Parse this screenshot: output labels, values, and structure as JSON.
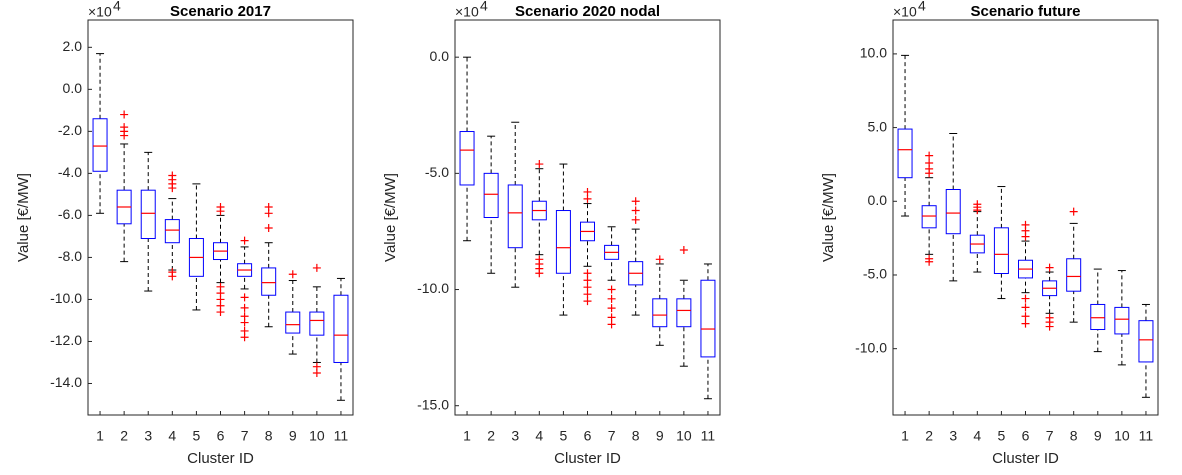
{
  "chart_data": [
    {
      "type": "box",
      "title": "Scenario 2017",
      "x_label": "Cluster ID",
      "y_label": "Value [€/MW]",
      "scale_label": "×10",
      "scale_exponent": "4",
      "categories": [
        "1",
        "2",
        "3",
        "4",
        "5",
        "6",
        "7",
        "8",
        "9",
        "10",
        "11"
      ],
      "ylim": [
        -15.5,
        3.3
      ],
      "yticks": [
        {
          "value": 2,
          "label": "2.0"
        },
        {
          "value": 0,
          "label": "0.0"
        },
        {
          "value": -2,
          "label": "-2.0"
        },
        {
          "value": -4,
          "label": "-4.0"
        },
        {
          "value": -6,
          "label": "-6.0"
        },
        {
          "value": -8,
          "label": "-8.0"
        },
        {
          "value": -10,
          "label": "-10.0"
        },
        {
          "value": -12,
          "label": "-12.0"
        },
        {
          "value": -14,
          "label": "-14.0"
        }
      ],
      "box_color": "#0000ff",
      "median_color": "#ff0000",
      "outlier_color": "#ff0000",
      "whisker_color": "#000000",
      "boxes": [
        {
          "whisker_low": -5.9,
          "q1": -3.9,
          "median": -2.7,
          "q3": -1.4,
          "whisker_high": 1.7,
          "outliers": []
        },
        {
          "whisker_low": -8.2,
          "q1": -6.4,
          "median": -5.6,
          "q3": -4.8,
          "whisker_high": -2.6,
          "outliers": [
            -1.2,
            -1.8,
            -2.0,
            -2.2
          ]
        },
        {
          "whisker_low": -9.6,
          "q1": -7.1,
          "median": -5.9,
          "q3": -4.8,
          "whisker_high": -3.0,
          "outliers": []
        },
        {
          "whisker_low": -8.6,
          "q1": -7.3,
          "median": -6.7,
          "q3": -6.2,
          "whisker_high": -5.2,
          "outliers": [
            -4.1,
            -4.3,
            -4.5,
            -4.7,
            -8.7,
            -8.9
          ]
        },
        {
          "whisker_low": -10.5,
          "q1": -8.9,
          "median": -8.0,
          "q3": -7.1,
          "whisker_high": -4.5,
          "outliers": []
        },
        {
          "whisker_low": -9.2,
          "q1": -8.1,
          "median": -7.7,
          "q3": -7.3,
          "whisker_high": -6.0,
          "outliers": [
            -5.6,
            -5.8,
            -9.4,
            -9.7,
            -10.0,
            -10.3,
            -10.6
          ]
        },
        {
          "whisker_low": -9.5,
          "q1": -8.9,
          "median": -8.6,
          "q3": -8.3,
          "whisker_high": -7.5,
          "outliers": [
            -7.2,
            -9.9,
            -10.4,
            -10.8,
            -11.1,
            -11.5,
            -11.8
          ]
        },
        {
          "whisker_low": -11.3,
          "q1": -9.8,
          "median": -9.2,
          "q3": -8.5,
          "whisker_high": -7.3,
          "outliers": [
            -5.6,
            -5.9,
            -6.6
          ]
        },
        {
          "whisker_low": -12.6,
          "q1": -11.6,
          "median": -11.2,
          "q3": -10.6,
          "whisker_high": -9.1,
          "outliers": [
            -8.8
          ]
        },
        {
          "whisker_low": -13.0,
          "q1": -11.7,
          "median": -11.0,
          "q3": -10.6,
          "whisker_high": -9.4,
          "outliers": [
            -8.5,
            -13.2,
            -13.5
          ]
        },
        {
          "whisker_low": -14.8,
          "q1": -13.0,
          "median": -11.7,
          "q3": -9.8,
          "whisker_high": -9.0,
          "outliers": []
        }
      ]
    },
    {
      "type": "box",
      "title": "Scenario 2020 nodal",
      "x_label": "Cluster ID",
      "y_label": "Value [€/MW]",
      "scale_label": "×10",
      "scale_exponent": "4",
      "categories": [
        "1",
        "2",
        "3",
        "4",
        "5",
        "6",
        "7",
        "8",
        "9",
        "10",
        "11"
      ],
      "ylim": [
        -15.4,
        1.6
      ],
      "yticks": [
        {
          "value": 0,
          "label": "0.0"
        },
        {
          "value": -5,
          "label": "-5.0"
        },
        {
          "value": -10,
          "label": "-10.0"
        },
        {
          "value": -15,
          "label": "-15.0"
        }
      ],
      "box_color": "#0000ff",
      "median_color": "#ff0000",
      "outlier_color": "#ff0000",
      "whisker_color": "#000000",
      "boxes": [
        {
          "whisker_low": -7.9,
          "q1": -5.5,
          "median": -4.0,
          "q3": -3.2,
          "whisker_high": 0.0,
          "outliers": []
        },
        {
          "whisker_low": -9.3,
          "q1": -6.9,
          "median": -5.9,
          "q3": -5.0,
          "whisker_high": -3.4,
          "outliers": []
        },
        {
          "whisker_low": -9.9,
          "q1": -8.2,
          "median": -6.7,
          "q3": -5.5,
          "whisker_high": -2.8,
          "outliers": []
        },
        {
          "whisker_low": -8.5,
          "q1": -7.0,
          "median": -6.6,
          "q3": -6.2,
          "whisker_high": -4.8,
          "outliers": [
            -4.6,
            -8.7,
            -8.9,
            -9.1,
            -9.3
          ]
        },
        {
          "whisker_low": -11.1,
          "q1": -9.3,
          "median": -8.2,
          "q3": -6.6,
          "whisker_high": -4.6,
          "outliers": []
        },
        {
          "whisker_low": -9.0,
          "q1": -7.9,
          "median": -7.5,
          "q3": -7.1,
          "whisker_high": -6.3,
          "outliers": [
            -5.8,
            -6.1,
            -9.3,
            -9.6,
            -9.9,
            -10.2,
            -10.5
          ]
        },
        {
          "whisker_low": -9.6,
          "q1": -8.7,
          "median": -8.4,
          "q3": -8.1,
          "whisker_high": -7.3,
          "outliers": [
            -10.0,
            -10.4,
            -10.8,
            -11.2,
            -11.5
          ]
        },
        {
          "whisker_low": -11.1,
          "q1": -9.8,
          "median": -9.3,
          "q3": -8.8,
          "whisker_high": -7.4,
          "outliers": [
            -6.2,
            -6.6,
            -7.0
          ]
        },
        {
          "whisker_low": -12.4,
          "q1": -11.6,
          "median": -11.1,
          "q3": -10.4,
          "whisker_high": -8.9,
          "outliers": [
            -8.7
          ]
        },
        {
          "whisker_low": -13.3,
          "q1": -11.6,
          "median": -10.9,
          "q3": -10.4,
          "whisker_high": -9.6,
          "outliers": [
            -8.3
          ]
        },
        {
          "whisker_low": -14.7,
          "q1": -12.9,
          "median": -11.7,
          "q3": -9.6,
          "whisker_high": -8.9,
          "outliers": []
        }
      ]
    },
    {
      "type": "box",
      "title": "Scenario future",
      "x_label": "Cluster ID",
      "y_label": "Value [€/MW]",
      "scale_label": "×10",
      "scale_exponent": "4",
      "categories": [
        "1",
        "2",
        "3",
        "4",
        "5",
        "6",
        "7",
        "8",
        "9",
        "10",
        "11"
      ],
      "ylim": [
        -14.5,
        12.3
      ],
      "yticks": [
        {
          "value": 10,
          "label": "10.0"
        },
        {
          "value": 5,
          "label": "5.0"
        },
        {
          "value": 0,
          "label": "0.0"
        },
        {
          "value": -5,
          "label": "-5.0"
        },
        {
          "value": -10,
          "label": "-10.0"
        }
      ],
      "box_color": "#0000ff",
      "median_color": "#ff0000",
      "outlier_color": "#ff0000",
      "whisker_color": "#000000",
      "boxes": [
        {
          "whisker_low": -1.0,
          "q1": 1.6,
          "median": 3.5,
          "q3": 4.9,
          "whisker_high": 9.9,
          "outliers": []
        },
        {
          "whisker_low": -3.6,
          "q1": -1.8,
          "median": -1.0,
          "q3": -0.3,
          "whisker_high": 1.6,
          "outliers": [
            1.9,
            2.2,
            2.6,
            3.1,
            -3.9,
            -4.1
          ]
        },
        {
          "whisker_low": -5.4,
          "q1": -2.2,
          "median": -0.8,
          "q3": 0.8,
          "whisker_high": 4.6,
          "outliers": []
        },
        {
          "whisker_low": -4.8,
          "q1": -3.5,
          "median": -2.9,
          "q3": -2.3,
          "whisker_high": -0.7,
          "outliers": [
            -0.2,
            -0.4,
            -0.6
          ]
        },
        {
          "whisker_low": -6.6,
          "q1": -4.9,
          "median": -3.6,
          "q3": -1.8,
          "whisker_high": 1.0,
          "outliers": []
        },
        {
          "whisker_low": -6.2,
          "q1": -5.2,
          "median": -4.6,
          "q3": -4.0,
          "whisker_high": -2.7,
          "outliers": [
            -1.6,
            -2.0,
            -2.4,
            -6.6,
            -7.2,
            -7.8,
            -8.3
          ]
        },
        {
          "whisker_low": -7.6,
          "q1": -6.4,
          "median": -5.9,
          "q3": -5.4,
          "whisker_high": -4.8,
          "outliers": [
            -4.5,
            -7.9,
            -8.2,
            -8.5
          ]
        },
        {
          "whisker_low": -8.2,
          "q1": -6.1,
          "median": -5.1,
          "q3": -3.9,
          "whisker_high": -1.5,
          "outliers": [
            -0.7
          ]
        },
        {
          "whisker_low": -10.2,
          "q1": -8.7,
          "median": -7.9,
          "q3": -7.0,
          "whisker_high": -4.6,
          "outliers": []
        },
        {
          "whisker_low": -11.1,
          "q1": -9.0,
          "median": -8.0,
          "q3": -7.2,
          "whisker_high": -4.7,
          "outliers": []
        },
        {
          "whisker_low": -13.3,
          "q1": -10.9,
          "median": -9.4,
          "q3": -8.1,
          "whisker_high": -7.0,
          "outliers": []
        }
      ]
    }
  ]
}
